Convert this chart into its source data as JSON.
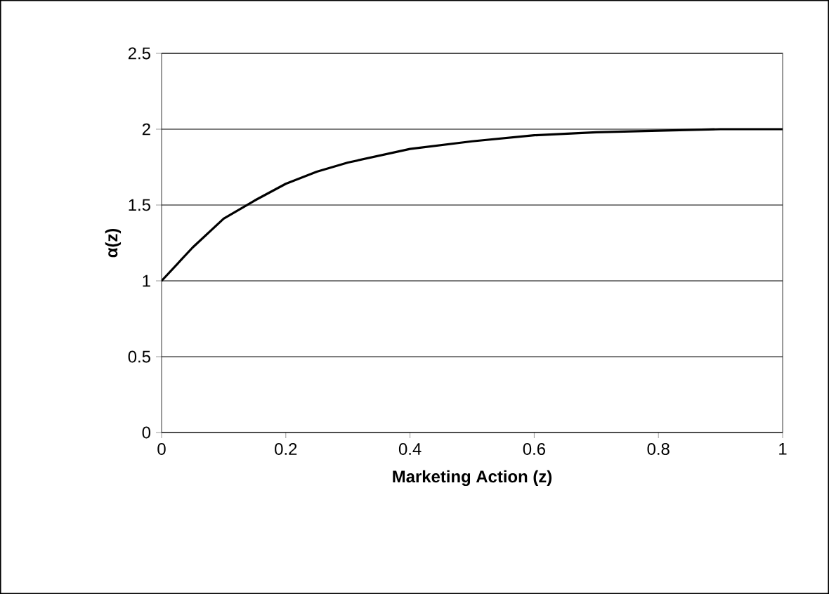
{
  "chart_data": {
    "type": "line",
    "xlabel": "Marketing Action (z)",
    "ylabel": "α(z)",
    "x": [
      0,
      0.05,
      0.1,
      0.15,
      0.2,
      0.25,
      0.3,
      0.4,
      0.5,
      0.6,
      0.7,
      0.8,
      0.9,
      1
    ],
    "series": [
      {
        "color": "#000000",
        "values": [
          1,
          1.22,
          1.41,
          1.53,
          1.64,
          1.72,
          1.78,
          1.87,
          1.92,
          1.96,
          1.98,
          1.99,
          2.0,
          2
        ]
      }
    ],
    "xlim": [
      0,
      1
    ],
    "ylim": [
      0,
      2.5
    ],
    "xticks": [
      0,
      0.2,
      0.4,
      0.6,
      0.8,
      1
    ],
    "yticks": [
      0,
      0.5,
      1,
      1.5,
      2,
      2.5
    ],
    "grid": "y",
    "marker": "none",
    "line_style": "solid"
  }
}
